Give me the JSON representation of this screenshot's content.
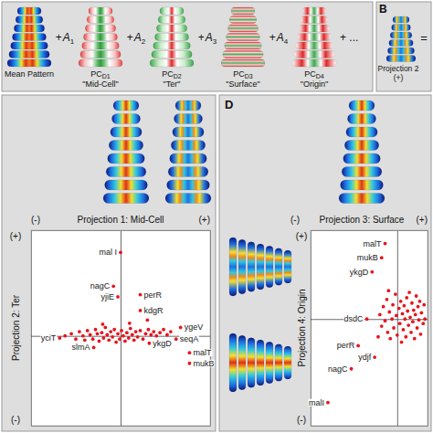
{
  "chart_data": [
    {
      "type": "diagram",
      "terms": [
        {
          "label": "Mean Pattern"
        },
        {
          "operator": "+",
          "coefficient": "A",
          "coefficient_sub": "1",
          "label": "PC",
          "label_sub": "D1",
          "caption": "\"Mid-Cell\""
        },
        {
          "operator": "+",
          "coefficient": "A",
          "coefficient_sub": "2",
          "label": "PC",
          "label_sub": "D2",
          "caption": "\"Ter\""
        },
        {
          "operator": "+",
          "coefficient": "A",
          "coefficient_sub": "3",
          "label": "PC",
          "label_sub": "D3",
          "caption": "\"Surface\""
        },
        {
          "operator": "+",
          "coefficient": "A",
          "coefficient_sub": "4",
          "label": "PC",
          "label_sub": "D4",
          "caption": "\"Origin\""
        }
      ],
      "tail": "+ ..."
    },
    {
      "type": "diagram",
      "panel": "B",
      "label": "Projection 2 (+)",
      "operator": "="
    },
    {
      "type": "scatter",
      "x_label": "Projection 1: Mid-Cell",
      "y_label": "Projection 2: Ter",
      "x_ends": [
        "(-)",
        "(+)"
      ],
      "y_ends": [
        "(-)",
        "(+)"
      ],
      "xlim": [
        -1,
        1
      ],
      "ylim": [
        -0.85,
        1
      ],
      "xticks": [
        0
      ],
      "yticks": [
        0
      ],
      "grid": true,
      "tick_labels": false,
      "color": "#e8141c",
      "points": [
        {
          "x": 0.0,
          "y": 0.79,
          "label": "mal I"
        },
        {
          "x": -0.08,
          "y": 0.47,
          "label": "nagC"
        },
        {
          "x": -0.03,
          "y": 0.37,
          "label": "yjiE"
        },
        {
          "x": 0.22,
          "y": 0.39,
          "label": "perR"
        },
        {
          "x": 0.22,
          "y": 0.24,
          "label": "kdgR"
        },
        {
          "x": -0.68,
          "y": -0.02,
          "label": "yciT"
        },
        {
          "x": -0.3,
          "y": -0.11,
          "label": "slmA"
        },
        {
          "x": 0.67,
          "y": 0.08,
          "label": "ygeV"
        },
        {
          "x": 0.62,
          "y": -0.03,
          "label": "seqA"
        },
        {
          "x": 0.32,
          "y": -0.07,
          "label": "ykgD"
        },
        {
          "x": 0.77,
          "y": -0.16,
          "label": "malT"
        },
        {
          "x": 0.77,
          "y": -0.26,
          "label": "mukB"
        },
        {
          "x": -0.55,
          "y": 0.02
        },
        {
          "x": -0.5,
          "y": -0.03
        },
        {
          "x": -0.46,
          "y": 0.04
        },
        {
          "x": -0.42,
          "y": 0.0
        },
        {
          "x": -0.4,
          "y": -0.04
        },
        {
          "x": -0.37,
          "y": 0.05
        },
        {
          "x": -0.34,
          "y": 0.01
        },
        {
          "x": -0.31,
          "y": -0.03
        },
        {
          "x": -0.28,
          "y": 0.06
        },
        {
          "x": -0.26,
          "y": 0.02
        },
        {
          "x": -0.24,
          "y": -0.05
        },
        {
          "x": -0.21,
          "y": 0.03
        },
        {
          "x": -0.19,
          "y": -0.02
        },
        {
          "x": -0.17,
          "y": 0.08
        },
        {
          "x": -0.15,
          "y": 0.01
        },
        {
          "x": -0.13,
          "y": -0.04
        },
        {
          "x": -0.11,
          "y": 0.04
        },
        {
          "x": -0.09,
          "y": -0.01
        },
        {
          "x": -0.07,
          "y": 0.06
        },
        {
          "x": -0.05,
          "y": -0.06
        },
        {
          "x": -0.03,
          "y": 0.02
        },
        {
          "x": -0.01,
          "y": -0.03
        },
        {
          "x": 0.01,
          "y": 0.05
        },
        {
          "x": 0.03,
          "y": 0.0
        },
        {
          "x": 0.05,
          "y": -0.05
        },
        {
          "x": 0.07,
          "y": 0.03
        },
        {
          "x": 0.09,
          "y": -0.02
        },
        {
          "x": 0.11,
          "y": 0.07
        },
        {
          "x": 0.13,
          "y": 0.01
        },
        {
          "x": 0.15,
          "y": -0.04
        },
        {
          "x": 0.17,
          "y": 0.04
        },
        {
          "x": 0.19,
          "y": -0.01
        },
        {
          "x": 0.22,
          "y": 0.05
        },
        {
          "x": 0.25,
          "y": -0.03
        },
        {
          "x": 0.28,
          "y": 0.02
        },
        {
          "x": 0.31,
          "y": 0.06
        },
        {
          "x": 0.34,
          "y": 0.01
        },
        {
          "x": 0.37,
          "y": 0.04
        },
        {
          "x": 0.4,
          "y": 0.0
        },
        {
          "x": 0.44,
          "y": 0.03
        },
        {
          "x": 0.48,
          "y": 0.06
        },
        {
          "x": 0.52,
          "y": 0.01
        },
        {
          "x": 0.56,
          "y": 0.04
        },
        {
          "x": -0.62,
          "y": 0.0
        },
        {
          "x": 0.1,
          "y": 0.12
        },
        {
          "x": -0.2,
          "y": 0.11
        },
        {
          "x": 0.3,
          "y": 0.15
        }
      ]
    },
    {
      "type": "scatter",
      "panel": "D",
      "x_label": "Projection 3: Surface",
      "y_label": "Projection 4: Origin",
      "x_ends": [
        "(-)",
        "(+)"
      ],
      "y_ends": [
        "(-)",
        "(+)"
      ],
      "xlim": [
        -1,
        0.35
      ],
      "ylim": [
        -1.2,
        1
      ],
      "xticks": [
        0
      ],
      "yticks": [
        0
      ],
      "grid": true,
      "tick_labels": false,
      "color": "#e8141c",
      "points": [
        {
          "x": -0.14,
          "y": 0.85,
          "label": "malT"
        },
        {
          "x": -0.18,
          "y": 0.69,
          "label": "mukB"
        },
        {
          "x": -0.29,
          "y": 0.53,
          "label": "ykgD"
        },
        {
          "x": -0.35,
          "y": 0.0,
          "label": "dsdC"
        },
        {
          "x": -0.45,
          "y": -0.3,
          "label": "perR"
        },
        {
          "x": -0.26,
          "y": -0.43,
          "label": "ydjf"
        },
        {
          "x": -0.53,
          "y": -0.56,
          "label": "nagC"
        },
        {
          "x": -0.8,
          "y": -0.94,
          "label": "malI"
        },
        {
          "x": -0.2,
          "y": 0.05
        },
        {
          "x": -0.18,
          "y": -0.08
        },
        {
          "x": -0.16,
          "y": 0.14
        },
        {
          "x": -0.14,
          "y": -0.02
        },
        {
          "x": -0.12,
          "y": 0.22
        },
        {
          "x": -0.11,
          "y": -0.15
        },
        {
          "x": -0.09,
          "y": 0.08
        },
        {
          "x": -0.08,
          "y": -0.22
        },
        {
          "x": -0.06,
          "y": 0.0
        },
        {
          "x": -0.05,
          "y": 0.16
        },
        {
          "x": -0.04,
          "y": -0.1
        },
        {
          "x": -0.02,
          "y": 0.28
        },
        {
          "x": -0.01,
          "y": 0.04
        },
        {
          "x": 0.0,
          "y": -0.18
        },
        {
          "x": 0.02,
          "y": 0.12
        },
        {
          "x": 0.03,
          "y": -0.05
        },
        {
          "x": 0.04,
          "y": 0.2
        },
        {
          "x": 0.05,
          "y": -0.26
        },
        {
          "x": 0.06,
          "y": 0.06
        },
        {
          "x": 0.07,
          "y": -0.12
        },
        {
          "x": 0.08,
          "y": 0.15
        },
        {
          "x": 0.09,
          "y": 0.0
        },
        {
          "x": 0.1,
          "y": -0.2
        },
        {
          "x": 0.11,
          "y": 0.24
        },
        {
          "x": 0.12,
          "y": 0.09
        },
        {
          "x": 0.13,
          "y": -0.07
        },
        {
          "x": 0.14,
          "y": 0.3
        },
        {
          "x": 0.15,
          "y": 0.02
        },
        {
          "x": 0.16,
          "y": -0.15
        },
        {
          "x": 0.17,
          "y": 0.18
        },
        {
          "x": 0.18,
          "y": -0.03
        },
        {
          "x": 0.19,
          "y": 0.1
        },
        {
          "x": 0.2,
          "y": -0.22
        },
        {
          "x": 0.21,
          "y": 0.05
        },
        {
          "x": 0.22,
          "y": 0.26
        },
        {
          "x": 0.23,
          "y": -0.1
        },
        {
          "x": 0.24,
          "y": 0.14
        },
        {
          "x": 0.25,
          "y": -0.01
        },
        {
          "x": 0.26,
          "y": 0.2
        },
        {
          "x": 0.27,
          "y": -0.17
        },
        {
          "x": 0.28,
          "y": 0.07
        },
        {
          "x": 0.3,
          "y": -0.05
        },
        {
          "x": 0.31,
          "y": 0.16
        },
        {
          "x": 0.32,
          "y": 0.0
        },
        {
          "x": -0.22,
          "y": -0.2
        },
        {
          "x": -0.1,
          "y": 0.32
        }
      ]
    }
  ]
}
